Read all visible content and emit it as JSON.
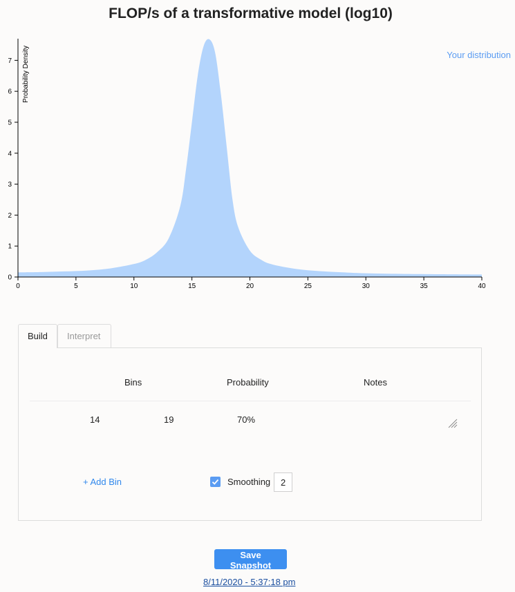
{
  "header": {
    "title": "FLOP/s of a transformative model (log10)"
  },
  "legend": {
    "label": "Your distribution",
    "color": "#5b9cf2"
  },
  "chart_data": {
    "type": "area",
    "ylabel": "Probability Density",
    "xlabel": "",
    "xlim": [
      0,
      40
    ],
    "ylim": [
      0,
      7.7
    ],
    "x_ticks": [
      0,
      5,
      10,
      15,
      20,
      25,
      30,
      35,
      40
    ],
    "y_ticks": [
      0,
      1,
      2,
      3,
      4,
      5,
      6,
      7
    ],
    "fill_color": "#b3d4fc",
    "series": [
      {
        "name": "Your distribution",
        "x": [
          0,
          2,
          4,
          6,
          8,
          10,
          11,
          12,
          13,
          14,
          14.5,
          15,
          15.5,
          16,
          16.5,
          17,
          17.5,
          18,
          18.5,
          19,
          20,
          21,
          22,
          24,
          26,
          28,
          30,
          33,
          36,
          40
        ],
        "y": [
          0.15,
          0.16,
          0.18,
          0.21,
          0.28,
          0.42,
          0.55,
          0.8,
          1.25,
          2.3,
          3.5,
          5.0,
          6.5,
          7.45,
          7.68,
          7.25,
          5.9,
          4.2,
          2.5,
          1.6,
          0.85,
          0.55,
          0.4,
          0.26,
          0.19,
          0.15,
          0.12,
          0.1,
          0.09,
          0.08
        ]
      }
    ]
  },
  "tabs": [
    {
      "label": "Build",
      "active": true
    },
    {
      "label": "Interpret",
      "active": false
    }
  ],
  "table": {
    "headers": {
      "bins": "Bins",
      "probability": "Probability",
      "notes": "Notes"
    },
    "rows": [
      {
        "from": "14",
        "to": "19",
        "probability": "70%",
        "notes": ""
      }
    ]
  },
  "controls": {
    "add_bin_label": "+ Add Bin",
    "smoothing_label": "Smoothing",
    "smoothing_checked": true,
    "smoothing_value": "2"
  },
  "footer": {
    "save_label": "Save Snapshot",
    "snapshot_timestamp": "8/11/2020 - 5:37:18 pm"
  }
}
